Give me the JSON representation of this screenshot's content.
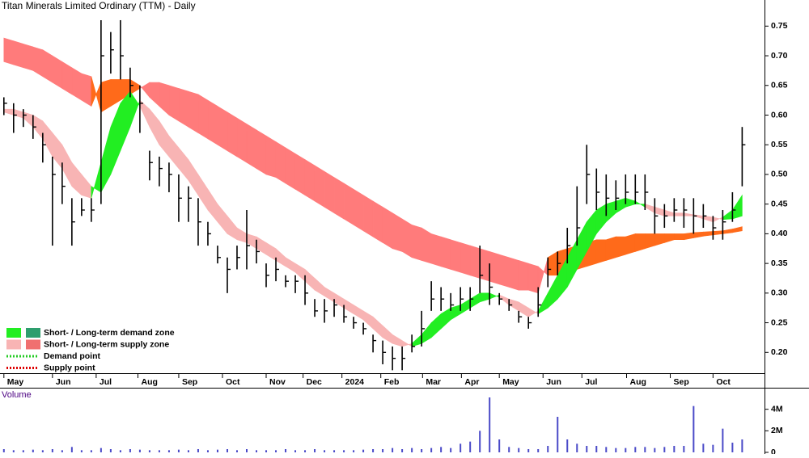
{
  "chart_data": [
    {
      "type": "ohlc",
      "title": "Titan Minerals Limited Ordinary (TTM) - Daily",
      "xlim": [
        -0.4,
        78.3
      ],
      "ylim": [
        0.165,
        0.794
      ],
      "yticks": [
        {
          "value": 0.2,
          "label": "0.20"
        },
        0.25,
        {
          "value": 0.3,
          "label": "0.30"
        },
        0.35,
        {
          "value": 0.4,
          "label": "0.40"
        },
        0.45,
        {
          "value": 0.5,
          "label": "0.50"
        },
        0.55,
        {
          "value": 0.6,
          "label": "0.60"
        },
        0.65,
        {
          "value": 0.7,
          "label": "0.70"
        },
        0.75
      ],
      "xticks": [
        {
          "value": 0,
          "label": "May"
        },
        {
          "value": 5,
          "label": "Jun"
        },
        {
          "value": 9.5,
          "label": "Jul"
        },
        {
          "value": 13.8,
          "label": "Aug"
        },
        {
          "value": 18,
          "label": "Sep"
        },
        {
          "value": 22.5,
          "label": "Oct"
        },
        {
          "value": 27,
          "label": "Nov"
        },
        {
          "value": 30.8,
          "label": "Dec"
        },
        {
          "value": 34.8,
          "label": "2024"
        },
        {
          "value": 38.8,
          "label": "Feb"
        },
        {
          "value": 43.1,
          "label": "Mar"
        },
        {
          "value": 47.1,
          "label": "Apr"
        },
        {
          "value": 51,
          "label": "May"
        },
        {
          "value": 55.5,
          "label": "Jun"
        },
        {
          "value": 59.5,
          "label": "Jul"
        },
        {
          "value": 64.1,
          "label": "Aug"
        },
        {
          "value": 68.6,
          "label": "Sep"
        },
        {
          "value": 73,
          "label": "Oct"
        }
      ],
      "color": "#000000",
      "high": [
        0.63,
        0.62,
        0.61,
        0.6,
        0.57,
        0.53,
        0.52,
        0.46,
        0.46,
        0.46,
        0.76,
        0.74,
        0.76,
        0.68,
        0.65,
        0.54,
        0.53,
        0.52,
        0.5,
        0.48,
        0.46,
        0.42,
        0.38,
        0.36,
        0.38,
        0.44,
        0.39,
        0.35,
        0.36,
        0.33,
        0.33,
        0.33,
        0.29,
        0.29,
        0.29,
        0.28,
        0.26,
        0.25,
        0.23,
        0.22,
        0.21,
        0.21,
        0.23,
        0.27,
        0.32,
        0.31,
        0.3,
        0.31,
        0.31,
        0.38,
        0.35,
        0.3,
        0.29,
        0.27,
        0.26,
        0.31,
        0.36,
        0.37,
        0.41,
        0.48,
        0.55,
        0.51,
        0.5,
        0.49,
        0.5,
        0.5,
        0.5,
        0.46,
        0.45,
        0.46,
        0.46,
        0.46,
        0.45,
        0.43,
        0.44,
        0.47,
        0.58
      ],
      "low": [
        0.6,
        0.57,
        0.58,
        0.56,
        0.52,
        0.38,
        0.45,
        0.38,
        0.43,
        0.42,
        0.45,
        0.67,
        0.66,
        0.63,
        0.57,
        0.49,
        0.48,
        0.47,
        0.42,
        0.42,
        0.38,
        0.38,
        0.35,
        0.3,
        0.34,
        0.34,
        0.35,
        0.31,
        0.32,
        0.31,
        0.3,
        0.28,
        0.26,
        0.25,
        0.26,
        0.25,
        0.24,
        0.23,
        0.2,
        0.18,
        0.17,
        0.17,
        0.2,
        0.21,
        0.27,
        0.27,
        0.27,
        0.27,
        0.27,
        0.3,
        0.28,
        0.28,
        0.27,
        0.25,
        0.24,
        0.26,
        0.31,
        0.33,
        0.35,
        0.38,
        0.45,
        0.44,
        0.43,
        0.44,
        0.45,
        0.45,
        0.44,
        0.4,
        0.41,
        0.42,
        0.41,
        0.4,
        0.41,
        0.39,
        0.39,
        0.42,
        0.48
      ],
      "close": [
        0.62,
        0.6,
        0.6,
        0.58,
        0.55,
        0.5,
        0.48,
        0.42,
        0.44,
        0.44,
        0.7,
        0.71,
        0.7,
        0.65,
        0.62,
        0.52,
        0.51,
        0.5,
        0.46,
        0.46,
        0.42,
        0.4,
        0.36,
        0.34,
        0.36,
        0.38,
        0.37,
        0.33,
        0.34,
        0.32,
        0.32,
        0.3,
        0.27,
        0.27,
        0.28,
        0.26,
        0.25,
        0.24,
        0.22,
        0.2,
        0.19,
        0.19,
        0.21,
        0.24,
        0.29,
        0.29,
        0.28,
        0.29,
        0.29,
        0.33,
        0.31,
        0.29,
        0.28,
        0.26,
        0.25,
        0.28,
        0.34,
        0.35,
        0.38,
        0.41,
        0.5,
        0.47,
        0.46,
        0.46,
        0.47,
        0.47,
        0.47,
        0.43,
        0.43,
        0.44,
        0.44,
        0.43,
        0.43,
        0.41,
        0.42,
        0.44,
        0.55
      ],
      "bands": [
        {
          "demand_color": "#ff6a1a",
          "supply_color": "#ff7b7b",
          "fast": [
            0.69,
            0.685,
            0.68,
            0.675,
            0.665,
            0.655,
            0.645,
            0.635,
            0.625,
            0.615,
            0.655,
            0.66,
            0.66,
            0.66,
            0.65,
            0.63,
            0.615,
            0.6,
            0.59,
            0.58,
            0.57,
            0.56,
            0.55,
            0.54,
            0.53,
            0.52,
            0.51,
            0.5,
            0.495,
            0.485,
            0.475,
            0.465,
            0.455,
            0.445,
            0.435,
            0.425,
            0.415,
            0.405,
            0.395,
            0.385,
            0.375,
            0.37,
            0.36,
            0.355,
            0.35,
            0.345,
            0.34,
            0.335,
            0.33,
            0.325,
            0.32,
            0.315,
            0.31,
            0.305,
            0.305,
            0.3,
            0.36,
            0.37,
            0.375,
            0.38,
            0.385,
            0.39,
            0.39,
            0.395,
            0.395,
            0.4,
            0.4,
            0.4,
            0.4,
            0.4,
            0.4,
            0.402,
            0.403,
            0.404,
            0.405,
            0.408,
            0.412
          ],
          "slow": [
            0.73,
            0.725,
            0.72,
            0.715,
            0.71,
            0.7,
            0.69,
            0.68,
            0.67,
            0.665,
            0.605,
            0.615,
            0.625,
            0.635,
            0.645,
            0.655,
            0.655,
            0.65,
            0.645,
            0.64,
            0.635,
            0.625,
            0.615,
            0.605,
            0.595,
            0.585,
            0.575,
            0.565,
            0.555,
            0.545,
            0.535,
            0.525,
            0.515,
            0.505,
            0.495,
            0.485,
            0.475,
            0.465,
            0.455,
            0.445,
            0.435,
            0.425,
            0.415,
            0.41,
            0.4,
            0.395,
            0.39,
            0.385,
            0.38,
            0.375,
            0.37,
            0.365,
            0.36,
            0.355,
            0.35,
            0.345,
            0.33,
            0.33,
            0.335,
            0.34,
            0.345,
            0.35,
            0.355,
            0.36,
            0.365,
            0.37,
            0.375,
            0.38,
            0.385,
            0.39,
            0.39,
            0.393,
            0.396,
            0.398,
            0.4,
            0.402,
            0.405
          ]
        },
        {
          "demand_color": "#22ee22",
          "supply_color": "#f8b4b4",
          "fast": [
            0.605,
            0.6,
            0.595,
            0.58,
            0.56,
            0.53,
            0.51,
            0.48,
            0.465,
            0.46,
            0.52,
            0.58,
            0.62,
            0.64,
            0.615,
            0.58,
            0.55,
            0.53,
            0.51,
            0.49,
            0.465,
            0.44,
            0.42,
            0.4,
            0.39,
            0.385,
            0.375,
            0.365,
            0.355,
            0.345,
            0.335,
            0.32,
            0.305,
            0.295,
            0.285,
            0.275,
            0.265,
            0.255,
            0.24,
            0.225,
            0.215,
            0.21,
            0.215,
            0.23,
            0.25,
            0.265,
            0.275,
            0.28,
            0.29,
            0.3,
            0.3,
            0.293,
            0.28,
            0.27,
            0.26,
            0.27,
            0.3,
            0.33,
            0.36,
            0.39,
            0.42,
            0.44,
            0.45,
            0.455,
            0.46,
            0.455,
            0.445,
            0.435,
            0.43,
            0.43,
            0.43,
            0.43,
            0.425,
            0.42,
            0.428,
            0.44,
            0.465
          ],
          "slow": [
            0.61,
            0.61,
            0.605,
            0.6,
            0.59,
            0.57,
            0.55,
            0.52,
            0.5,
            0.48,
            0.47,
            0.5,
            0.54,
            0.58,
            0.625,
            0.61,
            0.59,
            0.565,
            0.545,
            0.525,
            0.5,
            0.475,
            0.45,
            0.43,
            0.41,
            0.4,
            0.395,
            0.385,
            0.375,
            0.36,
            0.35,
            0.34,
            0.325,
            0.31,
            0.3,
            0.29,
            0.28,
            0.27,
            0.26,
            0.245,
            0.23,
            0.22,
            0.21,
            0.215,
            0.225,
            0.24,
            0.255,
            0.265,
            0.275,
            0.285,
            0.29,
            0.297,
            0.29,
            0.285,
            0.275,
            0.265,
            0.275,
            0.29,
            0.31,
            0.34,
            0.37,
            0.4,
            0.42,
            0.435,
            0.445,
            0.45,
            0.45,
            0.445,
            0.44,
            0.435,
            0.435,
            0.432,
            0.43,
            0.428,
            0.424,
            0.425,
            0.43
          ]
        }
      ],
      "legend": [
        {
          "label": "Short- / Long-term demand zone",
          "colors": [
            "#22ee22",
            "#2e9e6e"
          ]
        },
        {
          "label": "Short- / Long-term supply zone",
          "colors": [
            "#f8b4b4",
            "#f07070"
          ]
        },
        {
          "label": "Demand point",
          "colors": [
            "#22cc22"
          ],
          "dotted": true
        },
        {
          "label": "Supply point",
          "colors": [
            "#dd0000"
          ],
          "dotted": true
        }
      ]
    },
    {
      "type": "volume",
      "title": "Volume",
      "color": "#4a4ac8",
      "xlim": [
        -0.4,
        78.3
      ],
      "ylim": [
        0,
        6000000
      ],
      "yticks": [
        0,
        {
          "value": 2000000,
          "label": "2M"
        },
        {
          "value": 4000000,
          "label": "4M"
        }
      ],
      "values": [
        300000,
        200000,
        200000,
        250000,
        200000,
        300000,
        200000,
        500000,
        200000,
        200000,
        400000,
        300000,
        200000,
        300000,
        250000,
        200000,
        200000,
        200000,
        250000,
        200000,
        300000,
        200000,
        250000,
        300000,
        200000,
        300000,
        200000,
        200000,
        200000,
        300000,
        200000,
        200000,
        300000,
        200000,
        200000,
        200000,
        200000,
        250000,
        300000,
        300000,
        400000,
        300000,
        400000,
        300000,
        400000,
        500000,
        400000,
        800000,
        1000000,
        2000000,
        5100000,
        1200000,
        500000,
        400000,
        300000,
        300000,
        600000,
        3300000,
        1200000,
        800000,
        600000,
        600000,
        500000,
        400000,
        400000,
        500000,
        500000,
        400000,
        500000,
        600000,
        600000,
        4300000,
        800000,
        700000,
        2200000,
        900000,
        1200000
      ]
    }
  ]
}
